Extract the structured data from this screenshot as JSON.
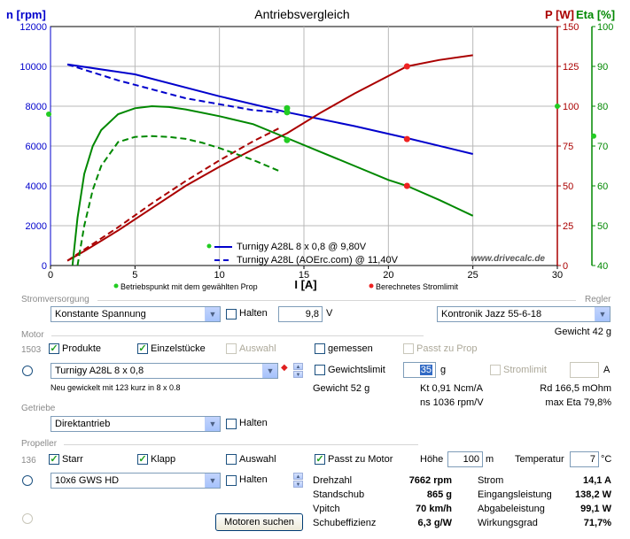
{
  "chart_data": {
    "type": "line",
    "title": "Antriebsvergleich",
    "xlabel": "I [A]",
    "ylabel_left": "n [rpm]",
    "ylabel_right_p": "P [W]",
    "ylabel_right_eta": "Eta [%]",
    "xlim": [
      0,
      30
    ],
    "ylim_rpm": [
      0,
      12000
    ],
    "ylim_power": [
      0,
      150
    ],
    "ylim_eta": [
      40,
      100
    ],
    "x_ticks": [
      "0",
      "5",
      "10",
      "15",
      "20",
      "25",
      "30"
    ],
    "y_ticks_rpm": [
      "0",
      "2000",
      "4000",
      "6000",
      "8000",
      "10000",
      "12000"
    ],
    "y_ticks_power": [
      "0",
      "25",
      "50",
      "75",
      "100",
      "125",
      "150"
    ],
    "y_ticks_eta": [
      "40",
      "50",
      "60",
      "70",
      "80",
      "90",
      "100"
    ],
    "watermark": "www.drivecalc.de",
    "legend": [
      {
        "label": "Turnigy A28L 8 x 0,8 @ 9,80V",
        "style": "solid"
      },
      {
        "label": "Turnigy A28L (AOErc.com) @ 11,40V",
        "style": "dashed"
      }
    ],
    "series": [
      {
        "name": "rpm (solid)",
        "axis": "rpm",
        "color": "#0000cc",
        "dash": false,
        "x": [
          1,
          5,
          10,
          14,
          18,
          21.1,
          25
        ],
        "y": [
          10100,
          9600,
          8500,
          7700,
          7000,
          6400,
          5600
        ]
      },
      {
        "name": "rpm (dashed)",
        "axis": "rpm",
        "color": "#0000cc",
        "dash": true,
        "x": [
          1,
          4,
          8,
          12,
          13.5
        ],
        "y": [
          10100,
          9300,
          8400,
          7800,
          7700
        ]
      },
      {
        "name": "power (solid)",
        "axis": "power",
        "color": "#aa0000",
        "dash": false,
        "x": [
          1,
          2,
          4,
          6,
          8,
          10,
          12,
          14,
          16,
          18,
          21.1,
          23,
          25
        ],
        "y": [
          3,
          9,
          22,
          36,
          50,
          62,
          73,
          83,
          96,
          108,
          125,
          129,
          132
        ]
      },
      {
        "name": "power (dashed)",
        "axis": "power",
        "color": "#aa0000",
        "dash": true,
        "x": [
          1,
          2,
          4,
          6,
          8,
          10,
          12,
          13.5
        ],
        "y": [
          3,
          10,
          24,
          39,
          53,
          66,
          78,
          86
        ]
      },
      {
        "name": "eta (solid)",
        "axis": "eta",
        "color": "#008800",
        "dash": false,
        "x": [
          1.3,
          1.6,
          2,
          2.5,
          3,
          4,
          5,
          6,
          7,
          8,
          10,
          12,
          14,
          16,
          18,
          20,
          21.1,
          23,
          25
        ],
        "y": [
          40,
          52,
          63,
          70,
          74,
          78,
          79.5,
          80,
          79.8,
          79.2,
          77.5,
          75.5,
          72,
          68.5,
          65,
          61.5,
          60,
          56.5,
          52.5
        ]
      },
      {
        "name": "eta (dashed)",
        "axis": "eta",
        "color": "#008800",
        "dash": true,
        "x": [
          1.6,
          2,
          2.5,
          3,
          4,
          5,
          6,
          7,
          8,
          9,
          10,
          11,
          12,
          13.5
        ],
        "y": [
          40,
          50,
          59,
          65,
          71,
          72.3,
          72.5,
          72.3,
          71.8,
          70.8,
          69.5,
          68,
          66.5,
          63.8
        ]
      }
    ],
    "markers_operating_point": [
      {
        "axis": "rpm",
        "x": 14,
        "y": 7700
      },
      {
        "axis": "rpm",
        "x": 14,
        "y": 6300
      },
      {
        "axis": "eta",
        "x": 14,
        "y": 79.5
      },
      {
        "axis": "eta",
        "x": 14,
        "y": 78.5
      }
    ],
    "markers_current_limit": [
      {
        "axis": "rpm",
        "x": 21.1,
        "y": 6350
      },
      {
        "axis": "power",
        "x": 21.1,
        "y": 125
      },
      {
        "axis": "eta",
        "x": 21.1,
        "y": 60
      }
    ],
    "markers_axis": [
      {
        "side": "left",
        "axis": "rpm",
        "y": 7600
      },
      {
        "side": "right",
        "axis": "eta",
        "y": 80
      },
      {
        "side": "right-outer",
        "axis": "eta",
        "y": 72.5
      }
    ],
    "note_left": "Betriebspunkt mit dem gewählten Prop",
    "note_right": "Berechnetes Stromlimit"
  },
  "colors": {
    "rpm": "#0000cc",
    "power": "#aa0000",
    "eta": "#008800",
    "op": "#22cc22",
    "limit": "#ee2222"
  },
  "stromversorgung": {
    "section": "Stromversorgung",
    "source": "Konstante Spannung",
    "halten_label": "Halten",
    "voltage": "9,8",
    "voltage_unit": "V"
  },
  "regler": {
    "section": "Regler",
    "model": "Kontronik Jazz 55-6-18",
    "weight": "Gewicht 42 g"
  },
  "motor": {
    "section": "Motor",
    "count": "1503",
    "produkte": "Produkte",
    "einzelstuecke": "Einzelstücke",
    "auswahl": "Auswahl",
    "gemessen": "gemessen",
    "passt_zu_prop": "Passt zu Prop",
    "model": "Turnigy A28L 8 x 0,8",
    "note": "Neu gewickelt mit 123 kurz in 8 x 0.8",
    "gewichtslimit": "Gewichtslimit",
    "gewichtslimit_value": "35",
    "gewichtslimit_unit": "g",
    "stromlimit": "Stromlimit",
    "stromlimit_unit": "A",
    "weight": "Gewicht 52 g",
    "kt": "Kt 0,91 Ncm/A",
    "rd": "Rd 166,5 mOhm",
    "ns": "ns 1036 rpm/V",
    "max_eta": "max Eta 79,8%"
  },
  "getriebe": {
    "section": "Getriebe",
    "type": "Direktantrieb",
    "halten_label": "Halten"
  },
  "propeller": {
    "section": "Propeller",
    "count": "136",
    "starr": "Starr",
    "klapp": "Klapp",
    "auswahl": "Auswahl",
    "passt_zu_motor": "Passt zu Motor",
    "hoehe_label": "Höhe",
    "hoehe_value": "100",
    "hoehe_unit": "m",
    "temp_label": "Temperatur",
    "temp_value": "7",
    "temp_unit": "°C",
    "model": "10x6 GWS HD",
    "halten_label": "Halten"
  },
  "search_button": "Motoren suchen",
  "results": {
    "drehzahl_label": "Drehzahl",
    "drehzahl": "7662 rpm",
    "standschub_label": "Standschub",
    "standschub": "865 g",
    "vpitch_label": "Vpitch",
    "vpitch": "70 km/h",
    "schubeffizienz_label": "Schubeffizienz",
    "schubeffizienz": "6,3 g/W",
    "strom_label": "Strom",
    "strom": "14,1 A",
    "eingang_label": "Eingangsleistung",
    "eingang": "138,2 W",
    "abgabe_label": "Abgabeleistung",
    "abgabe": "99,1 W",
    "wirkungsgrad_label": "Wirkungsgrad",
    "wirkungsgrad": "71,7%"
  }
}
